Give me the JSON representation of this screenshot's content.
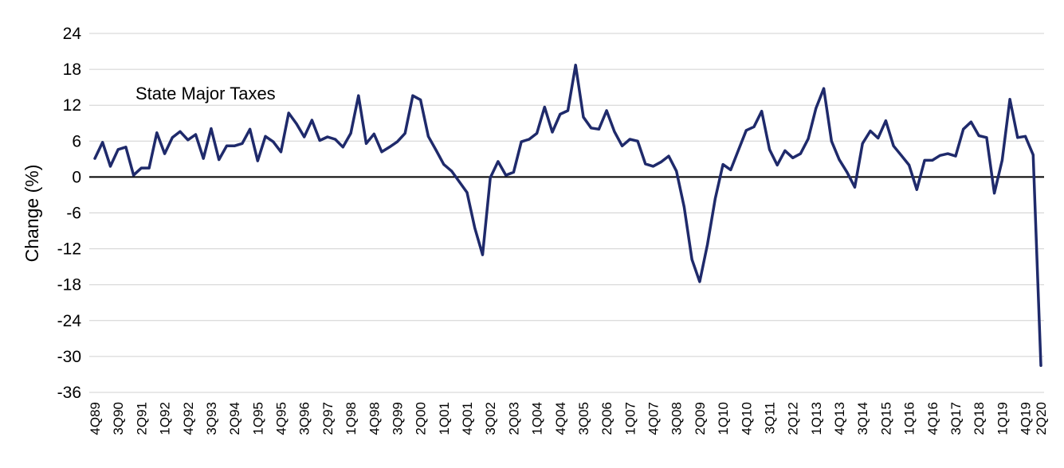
{
  "chart_data": {
    "type": "line",
    "ylabel": "Change (%)",
    "ylim": [
      -36,
      24
    ],
    "yticks": [
      24,
      18,
      12,
      6,
      0,
      -6,
      -12,
      -18,
      -24,
      -30,
      -36
    ],
    "grid": true,
    "line_color": "#1f2a6b",
    "annotation": "State Major Taxes",
    "x_tick_labels": [
      "4Q89",
      "3Q90",
      "2Q91",
      "1Q92",
      "4Q92",
      "3Q93",
      "2Q94",
      "1Q95",
      "4Q95",
      "3Q96",
      "2Q97",
      "1Q98",
      "4Q98",
      "3Q99",
      "2Q00",
      "1Q01",
      "4Q01",
      "3Q02",
      "2Q03",
      "1Q04",
      "4Q04",
      "3Q05",
      "2Q06",
      "1Q07",
      "4Q07",
      "3Q08",
      "2Q09",
      "1Q10",
      "4Q10",
      "3Q11",
      "2Q12",
      "1Q13",
      "4Q13",
      "3Q14",
      "2Q15",
      "1Q16",
      "4Q16",
      "3Q17",
      "2Q18",
      "1Q19",
      "4Q19",
      "2Q20"
    ],
    "x": [
      "4Q89",
      "1Q90",
      "2Q90",
      "3Q90",
      "4Q90",
      "1Q91",
      "2Q91",
      "3Q91",
      "4Q91",
      "1Q92",
      "2Q92",
      "3Q92",
      "4Q92",
      "1Q93",
      "2Q93",
      "3Q93",
      "4Q93",
      "1Q94",
      "2Q94",
      "3Q94",
      "4Q94",
      "1Q95",
      "2Q95",
      "3Q95",
      "4Q95",
      "1Q96",
      "2Q96",
      "3Q96",
      "4Q96",
      "1Q97",
      "2Q97",
      "3Q97",
      "4Q97",
      "1Q98",
      "2Q98",
      "3Q98",
      "4Q98",
      "1Q99",
      "2Q99",
      "3Q99",
      "4Q99",
      "1Q00",
      "2Q00",
      "3Q00",
      "4Q00",
      "1Q01",
      "2Q01",
      "3Q01",
      "4Q01",
      "1Q02",
      "2Q02",
      "3Q02",
      "4Q02",
      "1Q03",
      "2Q03",
      "3Q03",
      "4Q03",
      "1Q04",
      "2Q04",
      "3Q04",
      "4Q04",
      "1Q05",
      "2Q05",
      "3Q05",
      "4Q05",
      "1Q06",
      "2Q06",
      "3Q06",
      "4Q06",
      "1Q07",
      "2Q07",
      "3Q07",
      "4Q07",
      "1Q08",
      "2Q08",
      "3Q08",
      "4Q08",
      "1Q09",
      "2Q09",
      "3Q09",
      "4Q09",
      "1Q10",
      "2Q10",
      "3Q10",
      "4Q10",
      "1Q11",
      "2Q11",
      "3Q11",
      "4Q11",
      "1Q12",
      "2Q12",
      "3Q12",
      "4Q12",
      "1Q13",
      "2Q13",
      "3Q13",
      "4Q13",
      "1Q14",
      "2Q14",
      "3Q14",
      "4Q14",
      "1Q15",
      "2Q15",
      "3Q15",
      "4Q15",
      "1Q16",
      "2Q16",
      "3Q16",
      "4Q16",
      "1Q17",
      "2Q17",
      "3Q17",
      "4Q17",
      "1Q18",
      "2Q18",
      "3Q18",
      "4Q18",
      "1Q19",
      "2Q19",
      "3Q19",
      "4Q19",
      "1Q20",
      "2Q20"
    ],
    "series": [
      {
        "values": [
          3.1,
          5.8,
          1.8,
          4.6,
          5.0,
          0.3,
          1.5,
          1.5,
          7.4,
          3.9,
          6.6,
          7.6,
          6.2,
          7.1,
          3.1,
          8.1,
          2.9,
          5.2,
          5.2,
          5.6,
          8.0,
          2.7,
          6.8,
          5.9,
          4.2,
          10.7,
          8.9,
          6.7,
          9.5,
          6.1,
          6.7,
          6.3,
          5.0,
          7.3,
          13.6,
          5.6,
          7.2,
          4.2,
          5.0,
          5.9,
          7.3,
          13.6,
          12.9,
          6.8,
          4.5,
          2.1,
          1.0,
          -0.8,
          -2.6,
          -8.5,
          -13.0,
          -0.1,
          2.6,
          0.3,
          0.8,
          5.9,
          6.3,
          7.3,
          11.7,
          7.5,
          10.5,
          11.1,
          18.7,
          10.0,
          8.2,
          8.0,
          11.1,
          7.6,
          5.2,
          6.3,
          6.0,
          2.2,
          1.8,
          2.5,
          3.5,
          1.0,
          -5.0,
          -13.8,
          -17.5,
          -11.3,
          -3.6,
          2.1,
          1.2,
          4.5,
          7.8,
          8.4,
          11.0,
          4.6,
          2.0,
          4.4,
          3.2,
          3.9,
          6.4,
          11.5,
          14.8,
          6.0,
          2.9,
          0.8,
          -1.7,
          5.6,
          7.7,
          6.5,
          9.4,
          5.2,
          3.6,
          2.0,
          -2.1,
          2.8,
          2.8,
          3.6,
          3.9,
          3.5,
          8.0,
          9.2,
          6.9,
          6.6,
          -2.7,
          2.8,
          13.0,
          6.6,
          6.8,
          3.7,
          -31.5
        ]
      }
    ]
  }
}
